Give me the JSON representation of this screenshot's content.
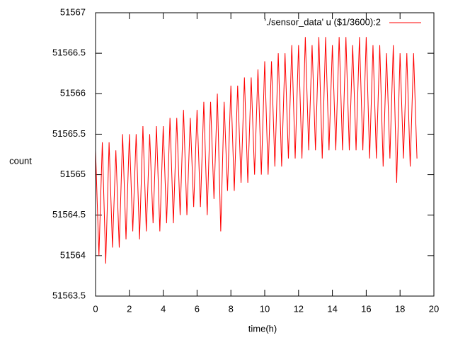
{
  "chart_data": {
    "type": "line",
    "x_label": "time(h)",
    "y_label": "count",
    "xlim": [
      0,
      20
    ],
    "xticks": [
      0,
      2,
      4,
      6,
      8,
      10,
      12,
      14,
      16,
      18,
      20
    ],
    "ylim": [
      51563.5,
      51567
    ],
    "yticks": [
      51563.5,
      51564,
      51564.5,
      51565,
      51565.5,
      51566,
      51566.5,
      51567
    ],
    "grid": false,
    "legend": "top-right",
    "x": [
      0.0,
      0.2,
      0.4,
      0.6,
      0.8,
      1.0,
      1.2,
      1.4,
      1.6,
      1.8,
      2.0,
      2.2,
      2.4,
      2.6,
      2.8,
      3.0,
      3.2,
      3.4,
      3.6,
      3.8,
      4.0,
      4.2,
      4.4,
      4.6,
      4.8,
      5.0,
      5.2,
      5.4,
      5.6,
      5.8,
      6.0,
      6.2,
      6.4,
      6.6,
      6.8,
      7.0,
      7.2,
      7.4,
      7.6,
      7.8,
      8.0,
      8.2,
      8.4,
      8.6,
      8.8,
      9.0,
      9.2,
      9.4,
      9.6,
      9.8,
      10.0,
      10.2,
      10.4,
      10.6,
      10.8,
      11.0,
      11.2,
      11.4,
      11.6,
      11.8,
      12.0,
      12.2,
      12.4,
      12.6,
      12.8,
      13.0,
      13.2,
      13.4,
      13.6,
      13.8,
      14.0,
      14.2,
      14.4,
      14.6,
      14.8,
      15.0,
      15.2,
      15.4,
      15.6,
      15.8,
      16.0,
      16.2,
      16.4,
      16.6,
      16.8,
      17.0,
      17.2,
      17.4,
      17.6,
      17.8,
      18.0,
      18.2,
      18.4,
      18.6,
      18.8,
      19.0
    ],
    "series": [
      {
        "name": "'./sensor_data' u ($1/3600):2",
        "color": "#ff0000",
        "values": [
          51565.3,
          51564.0,
          51565.4,
          51563.9,
          51565.4,
          51564.1,
          51565.3,
          51564.1,
          51565.5,
          51564.2,
          51565.5,
          51564.3,
          51565.5,
          51564.2,
          51565.6,
          51564.3,
          51565.5,
          51564.4,
          51565.6,
          51564.3,
          51565.6,
          51564.4,
          51565.7,
          51564.4,
          51565.7,
          51564.5,
          51565.8,
          51564.5,
          51565.7,
          51564.6,
          51565.8,
          51564.6,
          51565.9,
          51564.5,
          51565.9,
          51564.7,
          51566.0,
          51564.3,
          51565.9,
          51564.8,
          51566.1,
          51564.8,
          51566.1,
          51564.9,
          51566.2,
          51564.9,
          51566.2,
          51565.0,
          51566.3,
          51565.0,
          51566.4,
          51565.0,
          51566.4,
          51565.1,
          51566.5,
          51565.1,
          51566.5,
          51565.2,
          51566.6,
          51565.2,
          51566.6,
          51565.2,
          51566.7,
          51565.3,
          51566.6,
          51565.3,
          51566.7,
          51565.2,
          51566.7,
          51565.3,
          51566.6,
          51565.3,
          51566.7,
          51565.3,
          51566.7,
          51565.3,
          51566.6,
          51565.3,
          51566.7,
          51565.3,
          51566.7,
          51565.2,
          51566.6,
          51565.2,
          51566.6,
          51565.1,
          51566.5,
          51565.2,
          51566.6,
          51564.9,
          51566.5,
          51565.2,
          51566.5,
          51565.1,
          51566.5,
          51565.2
        ]
      }
    ]
  }
}
